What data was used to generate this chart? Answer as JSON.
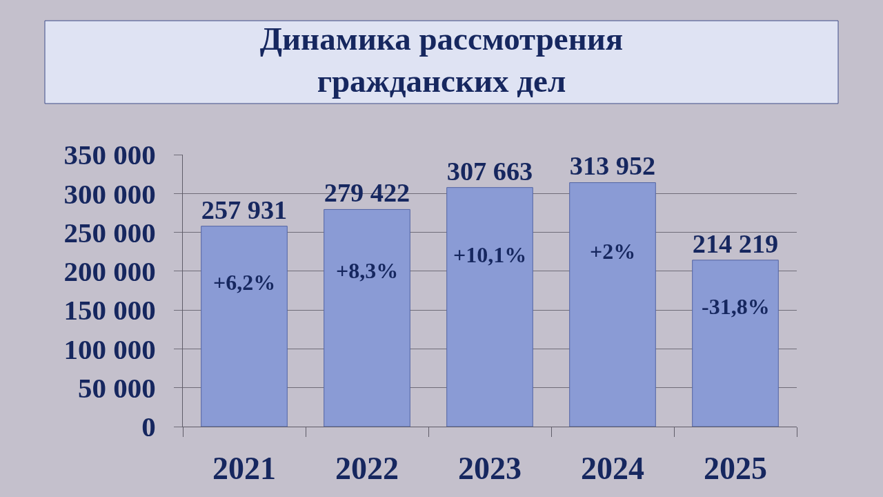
{
  "chart_data": {
    "type": "bar",
    "title": "Динамика рассмотрения\nгражданских дел",
    "categories": [
      "2021",
      "2022",
      "2023",
      "2024",
      "2025"
    ],
    "values": [
      257931,
      279422,
      307663,
      313952,
      214219
    ],
    "value_labels": [
      "257 931",
      "279 422",
      "307 663",
      "313 952",
      "214 219"
    ],
    "color": "#8a9bd5",
    "ylim": [
      0,
      350000
    ],
    "yticks": [
      0,
      {
        "value": 50000,
        "label": "50 000"
      },
      {
        "value": 100000,
        "label": "100 000"
      },
      {
        "value": 150000,
        "label": "150 000"
      },
      {
        "value": 200000,
        "label": "200 000"
      },
      {
        "value": 250000,
        "label": "250 000"
      },
      {
        "value": 300000,
        "label": "300 000"
      },
      {
        "value": 350000,
        "label": "350 000"
      }
    ],
    "grid": "y",
    "annotations": [
      "+6,2%",
      "+8,3%",
      "+10,1%",
      "+2%",
      "-31,8%"
    ]
  }
}
